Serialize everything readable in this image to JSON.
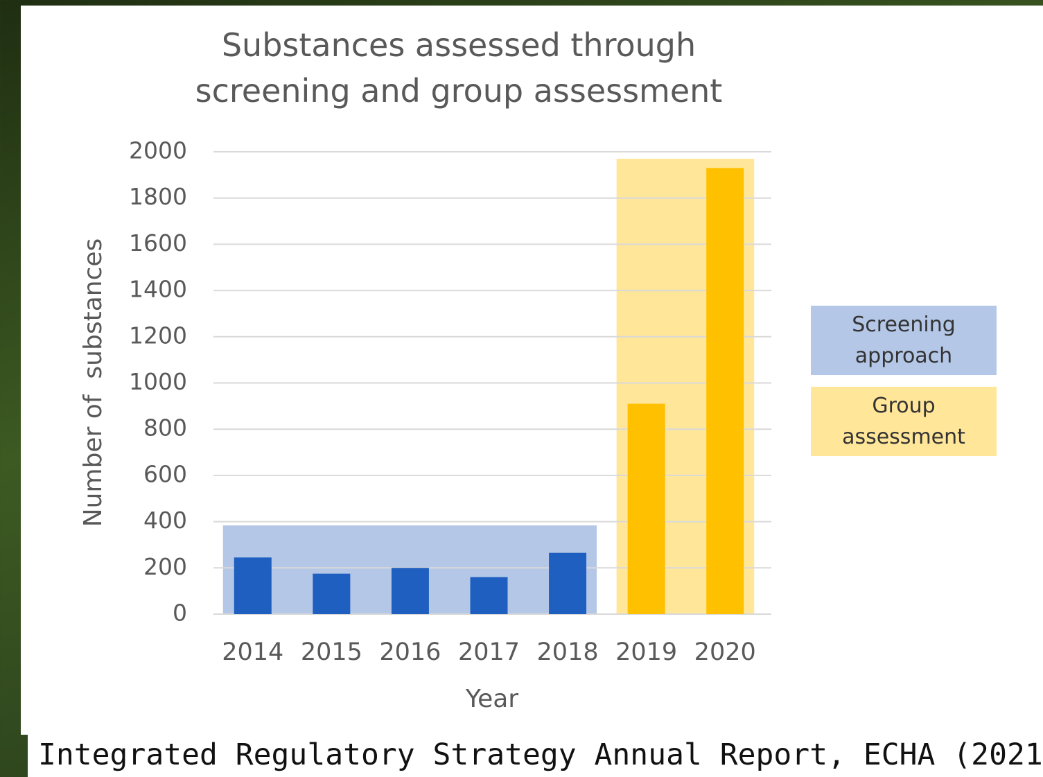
{
  "chart_data": {
    "type": "bar",
    "title": "Substances assessed through screening and group assessment",
    "x_label": "Year",
    "y_label": "Number of  substances",
    "categories": [
      "2014",
      "2015",
      "2016",
      "2017",
      "2018",
      "2019",
      "2020"
    ],
    "series": [
      {
        "name": "Screening approach",
        "color": "#1f5fc0",
        "band_color": "#b4c7e7",
        "values": [
          245,
          175,
          200,
          160,
          265,
          null,
          null
        ]
      },
      {
        "name": "Group assessment",
        "color": "#ffc000",
        "band_color": "#ffe699",
        "values": [
          null,
          null,
          null,
          null,
          null,
          910,
          1930
        ]
      }
    ],
    "ylim": [
      0,
      2000
    ],
    "yticks": [
      0,
      200,
      400,
      600,
      800,
      1000,
      1200,
      1400,
      1600,
      1800,
      2000
    ],
    "grid": true,
    "legend": "right"
  },
  "caption": "Integrated Regulatory Strategy Annual Report, ECHA (2021)."
}
